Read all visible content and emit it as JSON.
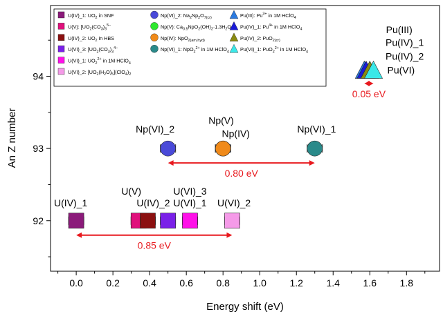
{
  "chart_data": {
    "type": "scatter",
    "xlabel": "Energy shift (eV)",
    "ylabel": "An Z number",
    "xlim": [
      -0.14,
      1.98
    ],
    "ylim": [
      91.3,
      94.98
    ],
    "xticks": [
      "0.0",
      "0.2",
      "0.4",
      "0.6",
      "0.8",
      "1.0",
      "1.2",
      "1.4",
      "1.6",
      "1.8"
    ],
    "yticks": [
      "92",
      "93",
      "94"
    ],
    "legend_position": "top-left",
    "series": [
      {
        "name": "U(IV)_1: UO2 in SNF",
        "marker": "square",
        "color": "#8b1a7a",
        "x": 0.0,
        "y": 92
      },
      {
        "name": "U(V): [UO2(CO3)3]5−",
        "marker": "square",
        "color": "#e0107c",
        "x": 0.34,
        "y": 92
      },
      {
        "name": "U(IV)_2: UO2 in HBS",
        "marker": "square",
        "color": "#8b1010",
        "x": 0.39,
        "y": 92
      },
      {
        "name": "U(VI)_3: [UO2(CO3)3]4−",
        "marker": "square",
        "color": "#7a20e8",
        "x": 0.5,
        "y": 92
      },
      {
        "name": "U(VI)_1: UO22+ in 1M HClO4",
        "marker": "square",
        "color": "#ff10e8",
        "x": 0.62,
        "y": 92
      },
      {
        "name": "U(VI)_2: [UO2(H2O)5](ClO4)2",
        "marker": "square",
        "color": "#f59ae8",
        "x": 0.85,
        "y": 92
      },
      {
        "name": "Np(VI)_2: Na2Np2O7(cr)",
        "marker": "circle",
        "color": "#4a4ad8",
        "x": 0.5,
        "y": 93
      },
      {
        "name": "Np(V): Ca0.5NpO2(OH)2·1.3H2O",
        "marker": "circle",
        "color": "#2ee82e",
        "x": 0.8,
        "y": 93
      },
      {
        "name": "Np(IV): NpO2(am,hyd)",
        "marker": "circle",
        "color": "#f08a1a",
        "x": 0.8,
        "y": 93
      },
      {
        "name": "Np(VI)_1: NpO22+ in 1M HClO4",
        "marker": "circle",
        "color": "#2a8a8a",
        "x": 1.3,
        "y": 93
      },
      {
        "name": "Pu(III): Pu3+ in 1M HClO4",
        "marker": "triangle",
        "color": "#2a7ae0",
        "x": 1.57,
        "y": 94
      },
      {
        "name": "Pu(IV)_1: Pu4+ in 1M HClO4",
        "marker": "triangle",
        "color": "#1a1ad8",
        "x": 1.58,
        "y": 94
      },
      {
        "name": "Pu(IV)_2: PuO2(cr)",
        "marker": "triangle",
        "color": "#8a8a10",
        "x": 1.6,
        "y": 94
      },
      {
        "name": "Pu(VI)_1: PuO22+ in 1M HClO4",
        "marker": "triangle",
        "color": "#3ae8e8",
        "x": 1.62,
        "y": 94
      }
    ],
    "point_labels": [
      {
        "text": "U(IV)_1",
        "x": -0.03,
        "y": 92.2
      },
      {
        "text": "U(V)",
        "x": 0.3,
        "y": 92.36
      },
      {
        "text": "U(IV)_2",
        "x": 0.42,
        "y": 92.2
      },
      {
        "text": "U(VI)_3",
        "x": 0.62,
        "y": 92.36
      },
      {
        "text": "U(VI)_1",
        "x": 0.62,
        "y": 92.2
      },
      {
        "text": "U(VI)_2",
        "x": 0.86,
        "y": 92.2
      },
      {
        "text": "Np(VI)_2",
        "x": 0.43,
        "y": 93.22
      },
      {
        "text": "Np(V)",
        "x": 0.79,
        "y": 93.34
      },
      {
        "text": "Np(IV)",
        "x": 0.87,
        "y": 93.16
      },
      {
        "text": "Np(VI)_1",
        "x": 1.31,
        "y": 93.22
      },
      {
        "text": "Pu(III)",
        "x": 1.76,
        "y": 94.6
      },
      {
        "text": "Pu(IV)_1",
        "x": 1.79,
        "y": 94.42
      },
      {
        "text": "Pu(IV)_2",
        "x": 1.79,
        "y": 94.23
      },
      {
        "text": "Pu(VI)",
        "x": 1.77,
        "y": 94.04
      }
    ],
    "ranges": [
      {
        "label": "0.85 eV",
        "x1": 0.0,
        "x2": 0.85,
        "y": 91.8,
        "color": "#e8191e"
      },
      {
        "label": "0.80 eV",
        "x1": 0.5,
        "x2": 1.3,
        "y": 92.8,
        "color": "#e8191e"
      },
      {
        "label": "0.05 eV",
        "x1": 1.57,
        "x2": 1.62,
        "y": 93.9,
        "color": "#e8191e"
      }
    ]
  },
  "legend": {
    "col1": [
      {
        "prefix": "U(IV)_1: UO",
        "sub": "2",
        "tail": " in SNF"
      },
      {
        "prefix": "U(V): [UO",
        "sub": "2",
        "mid": "(CO",
        "sub2": "3",
        "mid2": ")",
        "sub3": "3",
        "sup": "5−"
      },
      {
        "prefix": "U(IV)_2: UO",
        "sub": "2",
        "tail": " in HBS"
      },
      {
        "prefix": "U(VI)_3: [UO",
        "sub": "2",
        "mid": "(CO",
        "sub2": "3",
        "mid2": ")",
        "sub3": "3",
        "sup": "4−"
      },
      {
        "prefix": "U(VI)_1: UO",
        "sub": "2",
        "sup": "2+",
        "tail": " in 1M HClO",
        "sub4": "4"
      },
      {
        "prefix": "U(VI)_2: [UO",
        "sub": "2",
        "mid": "(H",
        "sub2": "2",
        "mid2": "O)",
        "sub3": "5",
        "tail": "](ClO",
        "sub4": "4",
        "tail2": ")",
        "sub5": "2"
      }
    ],
    "col2": [
      {
        "prefix": "Np(VI)_2: Na",
        "sub": "2",
        "mid": "Np",
        "sub2": "2",
        "mid2": "O",
        "sub3": "7(cr)"
      },
      {
        "prefix": "Np(V): Ca",
        "sub": "0.5",
        "mid": "NpO",
        "sub2": "2",
        "mid2": "(OH)",
        "sub3": "2",
        "tail": "·1.3H",
        "sub4": "2",
        "tail2": "O"
      },
      {
        "prefix": "Np(IV): NpO",
        "sub": "2(am,hyd)"
      },
      {
        "prefix": "Np(VI)_1: NpO",
        "sub": "2",
        "sup": "2+",
        "tail": " in 1M HClO",
        "sub4": "4"
      }
    ],
    "col3": [
      {
        "prefix": "Pu(III): Pu",
        "sup": "3+",
        "tail": " in 1M HClO",
        "sub4": "4"
      },
      {
        "prefix": "Pu(IV)_1: Pu",
        "sup": "4+",
        "tail": " in 1M HClO",
        "sub4": "4"
      },
      {
        "prefix": "Pu(IV)_2: PuO",
        "sub": "2(cr)"
      },
      {
        "prefix": "Pu(VI)_1: PuO",
        "sub": "2",
        "sup": "2+",
        "tail": " in 1M HClO",
        "sub4": "4"
      }
    ]
  }
}
